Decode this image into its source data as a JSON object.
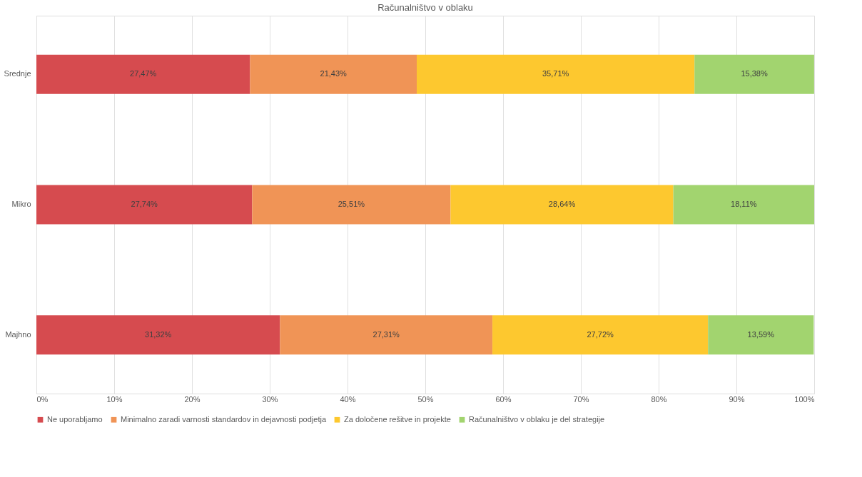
{
  "chart_data": {
    "type": "bar",
    "orientation": "horizontal",
    "stacked": true,
    "title": "Računalništvo v oblaku",
    "categories": [
      "Srednje",
      "Mikro",
      "Majhno"
    ],
    "series": [
      {
        "name": "Ne uporabljamo",
        "color": "#d64b4f",
        "values": [
          27.47,
          27.74,
          31.32
        ],
        "value_labels": [
          "27,47%",
          "27,74%",
          "31,32%"
        ]
      },
      {
        "name": "Minimalno zaradi varnosti standardov in dejavnosti podjetja",
        "color": "#f09456",
        "values": [
          21.43,
          25.51,
          27.31
        ],
        "value_labels": [
          "21,43%",
          "25,51%",
          "27,31%"
        ]
      },
      {
        "name": "Za določene rešitve in projekte",
        "color": "#fdc82f",
        "values": [
          35.71,
          28.64,
          27.72
        ],
        "value_labels": [
          "35,71%",
          "28,64%",
          "27,72%"
        ]
      },
      {
        "name": "Računalništvo v oblaku je del strategije",
        "color": "#a2d46f",
        "values": [
          15.38,
          18.11,
          13.59
        ],
        "value_labels": [
          "15,38%",
          "18,11%",
          "13,59%"
        ]
      }
    ],
    "xlim": [
      0,
      100
    ],
    "xticks": [
      {
        "value": 0,
        "label": "0%"
      },
      {
        "value": 10,
        "label": "10%"
      },
      {
        "value": 20,
        "label": "20%"
      },
      {
        "value": 30,
        "label": "30%"
      },
      {
        "value": 40,
        "label": "40%"
      },
      {
        "value": 50,
        "label": "50%"
      },
      {
        "value": 60,
        "label": "60%"
      },
      {
        "value": 70,
        "label": "70%"
      },
      {
        "value": 80,
        "label": "80%"
      },
      {
        "value": 90,
        "label": "90%"
      },
      {
        "value": 100,
        "label": "100%"
      }
    ],
    "grid": "x",
    "legend": "bottom"
  }
}
